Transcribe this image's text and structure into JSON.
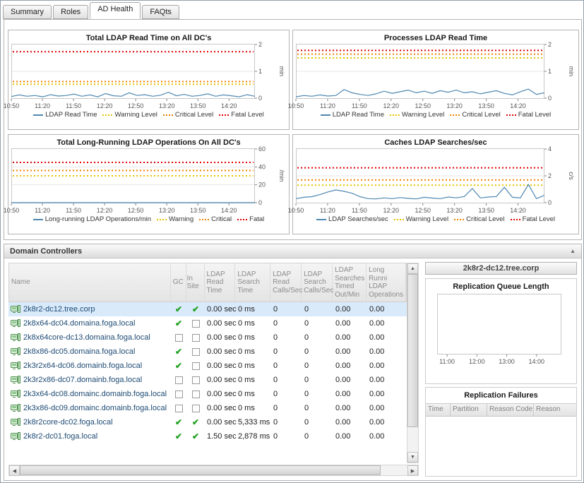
{
  "tabs": [
    {
      "label": "Summary",
      "active": false
    },
    {
      "label": "Roles",
      "active": false
    },
    {
      "label": "AD Health",
      "active": true
    },
    {
      "label": "FAQts",
      "active": false
    }
  ],
  "colors": {
    "series": "#4e87b0",
    "warning": "#e6c300",
    "critical": "#f08200",
    "fatal": "#e00000",
    "selected_row": "#d9eafb"
  },
  "charts": [
    {
      "type": "line",
      "title": "Total LDAP Read Time on All DC's",
      "unit": "min",
      "ylim": [
        0,
        2
      ],
      "yticks": [
        0,
        1,
        2
      ],
      "x_ticks": [
        "10:50",
        "11:20",
        "11:50",
        "12:20",
        "12:50",
        "13:20",
        "13:50",
        "14:20"
      ],
      "x_step": 30,
      "x_offset": 0,
      "x_total": 235,
      "thresholds": {
        "warning": 0.52,
        "critical": 0.62,
        "fatal": 1.73
      },
      "series_name": "LDAP Read Time",
      "values": [
        0.06,
        0.12,
        0.07,
        0.1,
        0.05,
        0.13,
        0.08,
        0.1,
        0.15,
        0.07,
        0.12,
        0.05,
        0.17,
        0.09,
        0.07,
        0.2,
        0.1,
        0.13,
        0.07,
        0.11,
        0.22,
        0.09,
        0.14,
        0.07,
        0.1,
        0.16,
        0.07,
        0.12,
        0.09,
        0.05,
        0.13,
        0.07
      ],
      "legend": [
        {
          "label": "LDAP Read Time",
          "color": "#4e87b0",
          "style": "solid"
        },
        {
          "label": "Warning Level",
          "color": "#e6c300",
          "style": "dotted"
        },
        {
          "label": "Critical Level",
          "color": "#f08200",
          "style": "dotted"
        },
        {
          "label": "Fatal Level",
          "color": "#e00000",
          "style": "dotted"
        }
      ]
    },
    {
      "type": "line",
      "title": "Processes LDAP Read Time",
      "unit": "min",
      "ylim": [
        0,
        2
      ],
      "yticks": [
        0,
        1,
        2
      ],
      "x_ticks": [
        "10:50",
        "11:20",
        "11:50",
        "12:20",
        "12:50",
        "13:20",
        "13:50",
        "14:20"
      ],
      "x_step": 30,
      "x_offset": 0,
      "x_total": 235,
      "thresholds": {
        "warning": 1.5,
        "critical": 1.64,
        "fatal": 1.78
      },
      "series_name": "LDAP Read Time",
      "values": [
        0.05,
        0.1,
        0.07,
        0.12,
        0.08,
        0.1,
        0.32,
        0.2,
        0.14,
        0.1,
        0.16,
        0.26,
        0.18,
        0.24,
        0.3,
        0.2,
        0.26,
        0.18,
        0.28,
        0.22,
        0.3,
        0.2,
        0.24,
        0.16,
        0.22,
        0.28,
        0.18,
        0.12,
        0.24,
        0.34,
        0.14,
        0.2
      ],
      "legend": [
        {
          "label": "LDAP Read Time",
          "color": "#4e87b0",
          "style": "solid"
        },
        {
          "label": "Warning Level",
          "color": "#e6c300",
          "style": "dotted"
        },
        {
          "label": "Critical Level",
          "color": "#f08200",
          "style": "dotted"
        },
        {
          "label": "Fatal Level",
          "color": "#e00000",
          "style": "dotted"
        }
      ]
    },
    {
      "type": "line",
      "title": "Total Long-Running LDAP Operations On All DC's",
      "unit": "/min",
      "ylim": [
        0,
        60
      ],
      "yticks": [
        0,
        20,
        40,
        60
      ],
      "x_ticks": [
        "10:50",
        "11:20",
        "11:50",
        "12:20",
        "12:50",
        "13:20",
        "13:50",
        "14:20"
      ],
      "x_step": 30,
      "x_offset": 0,
      "x_total": 235,
      "thresholds": {
        "warning": 30,
        "critical": 36,
        "fatal": 45
      },
      "series_name": "Long-running LDAP Operations/min",
      "values": [
        0,
        0,
        0,
        0,
        0,
        0,
        0,
        0,
        0,
        0,
        0,
        0,
        0,
        0,
        0,
        0,
        0,
        0,
        0,
        0,
        0,
        0,
        0,
        0,
        0,
        0,
        0,
        0,
        0,
        0,
        0,
        0
      ],
      "legend": [
        {
          "label": "Long-running LDAP Operations/min",
          "color": "#4e87b0",
          "style": "solid"
        },
        {
          "label": "Warning",
          "color": "#e6c300",
          "style": "dotted"
        },
        {
          "label": "Critical",
          "color": "#f08200",
          "style": "dotted"
        },
        {
          "label": "Fatal",
          "color": "#e00000",
          "style": "dotted"
        }
      ]
    },
    {
      "type": "line",
      "title": "Caches LDAP Searches/sec",
      "unit": "c/s",
      "ylim": [
        0,
        4
      ],
      "yticks": [
        0,
        2,
        4
      ],
      "x_ticks": [
        "10:50",
        "11:20",
        "11:50",
        "12:20",
        "12:50",
        "13:20",
        "13:50",
        "14:20"
      ],
      "x_step": 30,
      "x_offset": 0,
      "x_total": 235,
      "thresholds": {
        "warning": 1.3,
        "critical": 1.7,
        "fatal": 2.6
      },
      "series_name": "LDAP Searches/sec",
      "values": [
        0.3,
        0.4,
        0.45,
        0.6,
        0.8,
        0.95,
        0.85,
        0.7,
        0.45,
        0.3,
        0.28,
        0.36,
        0.3,
        0.38,
        0.32,
        0.28,
        0.4,
        0.34,
        0.3,
        0.42,
        0.36,
        0.46,
        1.05,
        0.35,
        0.42,
        0.46,
        1.15,
        0.4,
        0.36,
        1.35,
        0.3,
        0.55
      ],
      "legend": [
        {
          "label": "LDAP Searches/sec",
          "color": "#4e87b0",
          "style": "solid"
        },
        {
          "label": "Warning Level",
          "color": "#e6c300",
          "style": "dotted"
        },
        {
          "label": "Critical Level",
          "color": "#f08200",
          "style": "dotted"
        },
        {
          "label": "Fatal Level",
          "color": "#e00000",
          "style": "dotted"
        }
      ]
    }
  ],
  "domain_controllers": {
    "title": "Domain Controllers",
    "columns": [
      "Name",
      "GC",
      "In Site",
      "LDAP Read Time",
      "LDAP Search Time",
      "LDAP Read Calls/Sec",
      "LDAP Search Calls/Sec",
      "LDAP Searches Timed Out/Min",
      "Long Runni LDAP Operations"
    ],
    "rows": [
      {
        "name": "2k8r2-dc12.tree.corp",
        "gc": true,
        "in_site": true,
        "selected": true,
        "values": [
          "0.00 sec",
          "0 ms",
          "0",
          "0",
          "0.00",
          "0.00"
        ]
      },
      {
        "name": "2k8x64-dc04.domaina.foga.local",
        "gc": true,
        "in_site": false,
        "selected": false,
        "values": [
          "0.00 sec",
          "0 ms",
          "0",
          "0",
          "0.00",
          "0.00"
        ]
      },
      {
        "name": "2k8x64core-dc13.domaina.foga.local",
        "gc": false,
        "in_site": false,
        "selected": false,
        "values": [
          "0.00 sec",
          "0 ms",
          "0",
          "0",
          "0.00",
          "0.00"
        ]
      },
      {
        "name": "2k8x86-dc05.domaina.foga.local",
        "gc": true,
        "in_site": false,
        "selected": false,
        "values": [
          "0.00 sec",
          "0 ms",
          "0",
          "0",
          "0.00",
          "0.00"
        ]
      },
      {
        "name": "2k3r2x64-dc06.domainb.foga.local",
        "gc": true,
        "in_site": false,
        "selected": false,
        "values": [
          "0.00 sec",
          "0 ms",
          "0",
          "0",
          "0.00",
          "0.00"
        ]
      },
      {
        "name": "2k3r2x86-dc07.domainb.foga.local",
        "gc": false,
        "in_site": false,
        "selected": false,
        "values": [
          "0.00 sec",
          "0 ms",
          "0",
          "0",
          "0.00",
          "0.00"
        ]
      },
      {
        "name": "2k3x64-dc08.domainc.domainb.foga.local",
        "gc": false,
        "in_site": false,
        "selected": false,
        "values": [
          "0.00 sec",
          "0 ms",
          "0",
          "0",
          "0.00",
          "0.00"
        ]
      },
      {
        "name": "2k3x86-dc09.domainc.domainb.foga.local",
        "gc": false,
        "in_site": false,
        "selected": false,
        "values": [
          "0.00 sec",
          "0 ms",
          "0",
          "0",
          "0.00",
          "0.00"
        ]
      },
      {
        "name": "2k8r2core-dc02.foga.local",
        "gc": true,
        "in_site": true,
        "selected": false,
        "values": [
          "0.00 sec",
          "5,333 ms",
          "0",
          "0",
          "0.00",
          "0.00"
        ]
      },
      {
        "name": "2k8r2-dc01.foga.local",
        "gc": true,
        "in_site": true,
        "selected": false,
        "values": [
          "1.50 sec",
          "2,878 ms",
          "0",
          "0",
          "0.00",
          "0.00"
        ]
      }
    ]
  },
  "detail": {
    "title": "2k8r2-dc12.tree.corp",
    "queue_chart": {
      "type": "line",
      "title": "Replication Queue Length",
      "unit": "",
      "ylim": [
        0,
        1
      ],
      "yticks": [],
      "x_ticks": [
        "11:00",
        "12:00",
        "13:00",
        "14:00"
      ],
      "x_step": 60,
      "x_offset": 20,
      "x_total": 250,
      "thresholds": {},
      "values": []
    },
    "failures": {
      "title": "Replication Failures",
      "columns": [
        "Time",
        "Partition",
        "Reason Code",
        "Reason"
      ],
      "rows": []
    }
  }
}
